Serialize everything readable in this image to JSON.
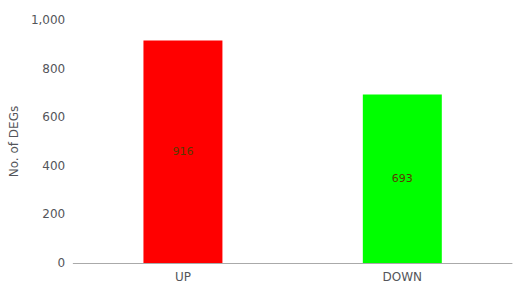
{
  "chart_data": {
    "type": "bar",
    "categories": [
      "UP",
      "DOWN"
    ],
    "values": [
      916,
      693
    ],
    "colors": [
      "#ff0000",
      "#00ff00"
    ],
    "ylabel": "No. of DEGs",
    "ylim": [
      0,
      1000
    ],
    "yticks": [
      0,
      200,
      400,
      600,
      800,
      1000
    ],
    "grid": false,
    "data_labels": true
  }
}
